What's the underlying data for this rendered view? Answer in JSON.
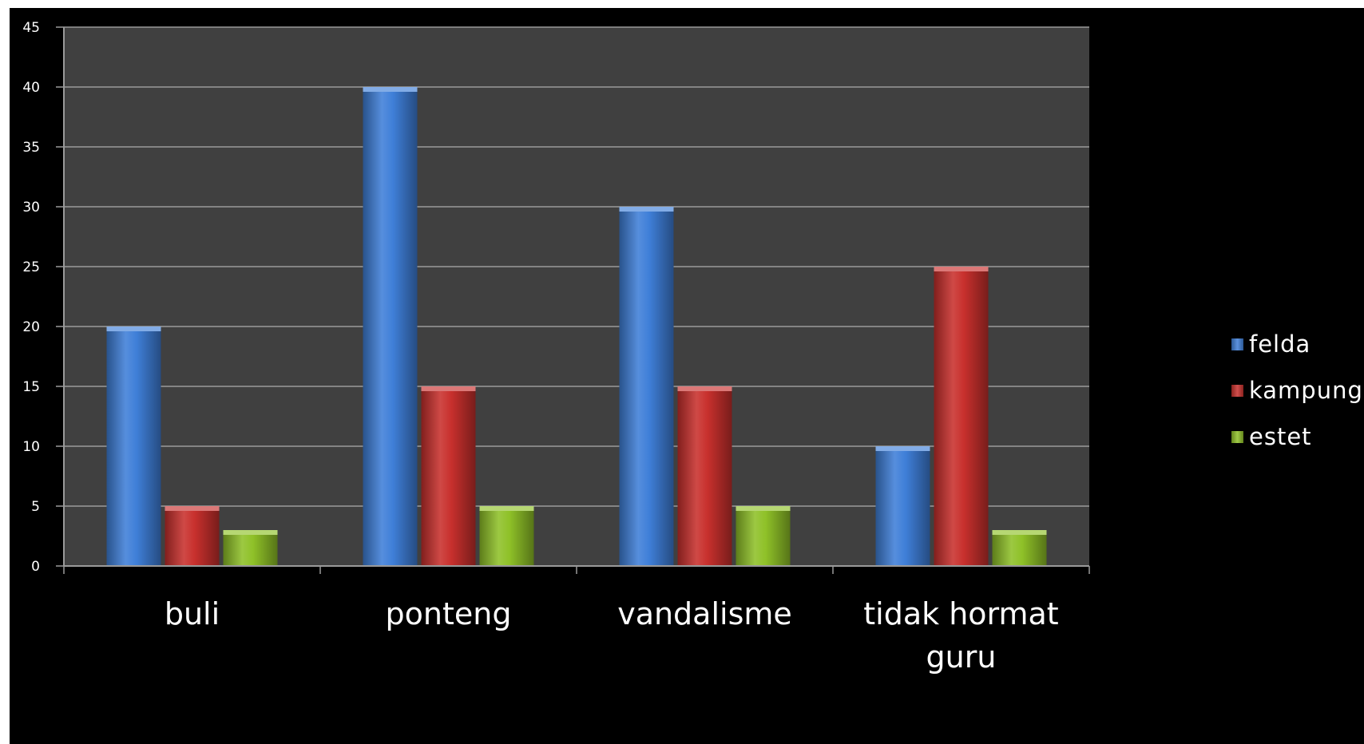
{
  "chart_data": {
    "type": "bar",
    "title": "",
    "xlabel": "",
    "ylabel": "",
    "categories": [
      "buli",
      "ponteng",
      "vandalisme",
      "tidak hormat guru"
    ],
    "category_lines": [
      [
        "buli"
      ],
      [
        "ponteng"
      ],
      [
        "vandalisme"
      ],
      [
        "tidak hormat",
        "guru"
      ]
    ],
    "series": [
      {
        "name": "felda",
        "values": [
          20,
          40,
          30,
          10
        ],
        "color": "#3f7fd8"
      },
      {
        "name": "kampung",
        "values": [
          5,
          15,
          15,
          25
        ],
        "color": "#c8302d"
      },
      {
        "name": "estet",
        "values": [
          3,
          5,
          5,
          3
        ],
        "color": "#8fc128"
      }
    ],
    "ylim": [
      0,
      45
    ],
    "yticks": [
      "0",
      "5",
      "10",
      "15",
      "20",
      "25",
      "30",
      "35",
      "40",
      "45"
    ],
    "grid": true,
    "legend_position": "right",
    "colors": {
      "frame_bg": "#000000",
      "plot_bg": "#404040",
      "gridline": "#9a9a9a",
      "text": "#ffffff"
    }
  }
}
